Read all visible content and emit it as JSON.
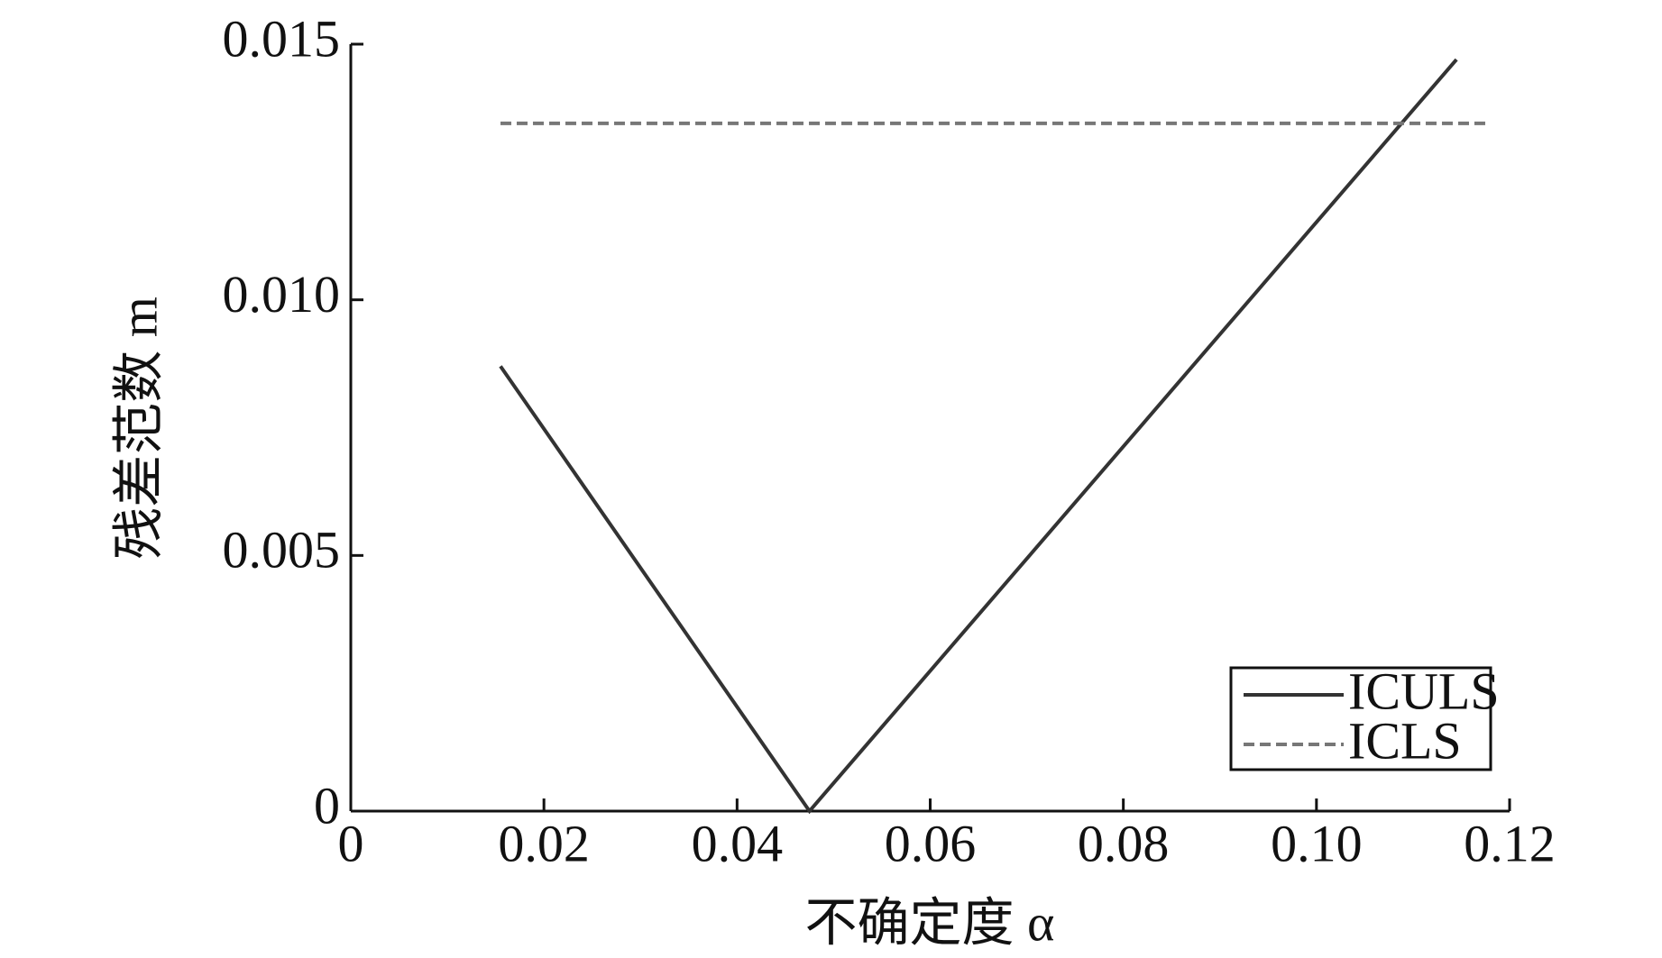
{
  "chart_data": {
    "type": "line",
    "x_label": "不确定度 α",
    "y_label": "残差范数 m",
    "xlim": [
      0,
      0.12
    ],
    "xticks": [
      0,
      0.02,
      0.04,
      0.06,
      0.08,
      {
        "value": 0.1,
        "label": "0.10"
      },
      0.12
    ],
    "ylim": [
      0,
      0.015
    ],
    "yticks": [
      0,
      0.005,
      {
        "value": 0.01,
        "label": "0.010"
      },
      {
        "value": 0.015,
        "label": "0.015"
      }
    ],
    "series": [
      {
        "name": "ICULS",
        "color": "#333333",
        "dash": false,
        "x": [
          0.0155,
          0.0475,
          0.1145
        ],
        "values": [
          0.0087,
          0,
          0.0147
        ]
      },
      {
        "name": "ICLS",
        "color": "#777777",
        "dash": true,
        "x": [
          0.0155,
          0.1175
        ],
        "values": [
          0.01345,
          0.01345
        ]
      }
    ],
    "legend": "lower right"
  }
}
